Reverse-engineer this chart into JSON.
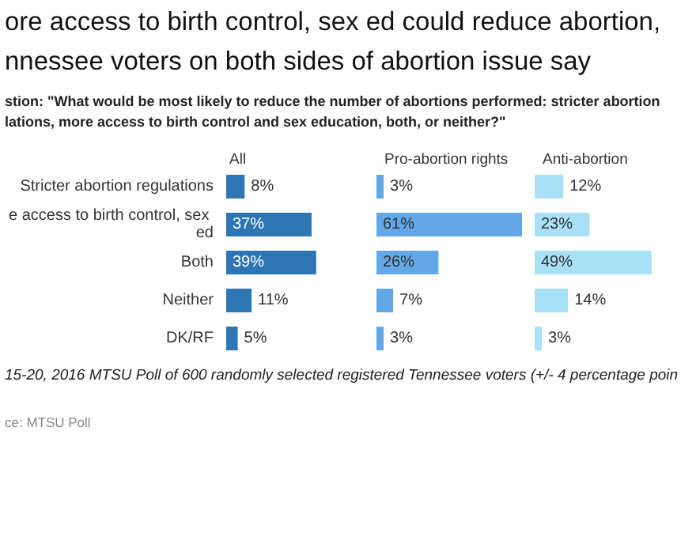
{
  "chart_data": [
    {
      "type": "bar",
      "orientation": "horizontal",
      "title": "ore access to birth control, sex ed could reduce abortion,\nnnessee voters on both sides of abortion issue say",
      "subtitle": "stion: \"What would be most likely to reduce the number of abortions performed: stricter abortion\nlations, more access to birth control and sex education, both, or neither?\"",
      "annotations": [
        "15-20, 2016 MTSU Poll of 600 randomly selected registered Tennessee voters (+/- 4 percentage poin",
        "ce: MTSU Poll"
      ],
      "xlabel": "All",
      "categories": [
        "Stricter abortion regulations",
        "e access to birth control, sex ed",
        "Both",
        "Neither",
        "DK/RF"
      ],
      "series": [
        {
          "color": "#2e75b6",
          "values": [
            8,
            37,
            39,
            11,
            5
          ],
          "value_labels": [
            "8%",
            "37%",
            "39%",
            "11%",
            "5%"
          ]
        }
      ]
    },
    {
      "type": "bar",
      "orientation": "horizontal",
      "xlabel": "Pro-abortion rights",
      "tick_labels": false,
      "categories": [
        "Stricter abortion regulations",
        "e access to birth control, sex ed",
        "Both",
        "Neither",
        "DK/RF"
      ],
      "series": [
        {
          "color": "#62a8e8",
          "values": [
            3,
            61,
            26,
            7,
            3
          ],
          "value_labels": [
            "3%",
            "61%",
            "26%",
            "7%",
            "3%"
          ]
        }
      ]
    },
    {
      "type": "bar",
      "orientation": "horizontal",
      "xlabel": "Anti-abortion",
      "tick_labels": false,
      "categories": [
        "Stricter abortion regulations",
        "e access to birth control, sex ed",
        "Both",
        "Neither",
        "DK/RF"
      ],
      "series": [
        {
          "color": "#a8e0f8",
          "values": [
            12,
            23,
            49,
            14,
            3
          ],
          "value_labels": [
            "12%",
            "23%",
            "49%",
            "14%",
            "3%"
          ]
        }
      ]
    }
  ]
}
